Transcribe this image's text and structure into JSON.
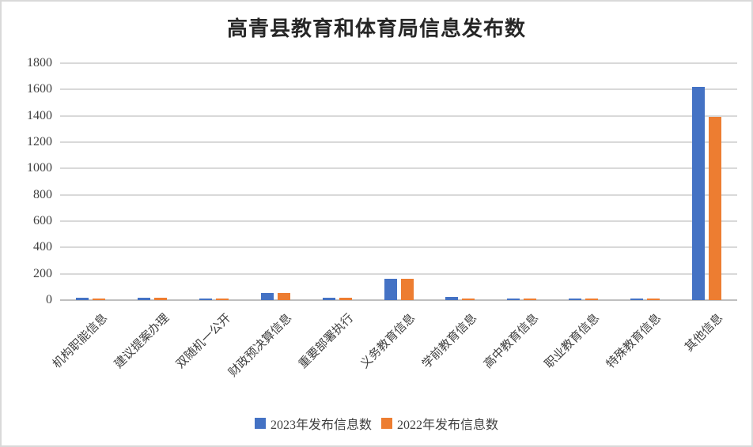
{
  "window": {
    "background": "#ffffff",
    "border_color": "#d9d9d9"
  },
  "chart_data": {
    "type": "bar",
    "title": "高青县教育和体育局信息发布数",
    "categories": [
      "机构职能信息",
      "建议提案办理",
      "双随机一公开",
      "财政预决算信息",
      "重要部署执行",
      "义务教育信息",
      "学前教育信息",
      "高中教育信息",
      "职业教育信息",
      "特殊教育信息",
      "其他信息"
    ],
    "series": [
      {
        "name": "2023年发布信息数",
        "color": "#4472C4",
        "values": [
          20,
          20,
          12,
          52,
          21,
          160,
          22,
          15,
          13,
          12,
          1620
        ]
      },
      {
        "name": "2022年发布信息数",
        "color": "#ED7D31",
        "values": [
          10,
          18,
          10,
          57,
          20,
          164,
          12,
          12,
          12,
          12,
          1390
        ]
      }
    ],
    "xlabel": "",
    "ylabel": "",
    "ylim": [
      0,
      1800
    ],
    "ytick_step": 200,
    "yticks": [
      0,
      200,
      400,
      600,
      800,
      1000,
      1200,
      1400,
      1600,
      1800
    ],
    "grid": true,
    "legend_position": "bottom",
    "gridline_color": "#d9d9d9",
    "axis_line_color": "#bfbfbf",
    "text_color": "#404040"
  }
}
